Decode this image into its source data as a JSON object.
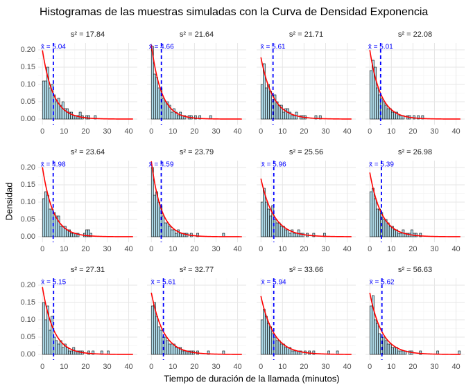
{
  "chart_data": {
    "type": "histogram",
    "title": "Histogramas de las muestras simuladas con la Curva de Densidad Exponencia",
    "xlabel": "Tiempo de duración de la llamada (minutos)",
    "ylabel": "Densidad",
    "xlim": [
      -2,
      44
    ],
    "xticks": [
      0,
      10,
      20,
      30,
      40
    ],
    "ylim": [
      -0.016,
      0.22
    ],
    "yticks": [
      {
        "value": 0,
        "label": "0.00"
      },
      {
        "value": 0.05,
        "label": "0.05"
      },
      {
        "value": 0.1,
        "label": "0.10"
      },
      {
        "value": 0.15,
        "label": "0.15"
      },
      {
        "value": 0.2,
        "label": "0.20"
      }
    ],
    "grid": true,
    "bar_color": "#add8e6",
    "curve_color": "#ff0000",
    "mean_color": "#0000ff",
    "bins": [
      0,
      1,
      2,
      3,
      4,
      5,
      6,
      7,
      8,
      9,
      10,
      11,
      12,
      13,
      14,
      15,
      16,
      17,
      18,
      19,
      20,
      21,
      22,
      23,
      24,
      25,
      26,
      27,
      28,
      29,
      30,
      31,
      32,
      33,
      34,
      35,
      36,
      37,
      38,
      39,
      40,
      41,
      42
    ],
    "panels": [
      {
        "label": "s² = 17.84",
        "mean_label": "x̄ = 5.04",
        "mean": 5.04,
        "values": [
          0.11,
          0.11,
          0.15,
          0.09,
          0.1,
          0.07,
          0.05,
          0.06,
          0.04,
          0.05,
          0.03,
          0.03,
          0.02,
          0.02,
          0.01,
          0.01,
          0.01,
          0.02,
          0.01,
          0,
          0.01,
          0.01,
          0,
          0,
          0.01,
          0,
          0,
          0,
          0,
          0,
          0,
          0,
          0,
          0,
          0,
          0,
          0,
          0,
          0,
          0,
          0,
          0
        ]
      },
      {
        "label": "s² = 21.64",
        "mean_label": "x̄ = 4.66",
        "mean": 4.66,
        "values": [
          0.21,
          0.13,
          0.12,
          0.09,
          0.09,
          0.06,
          0.05,
          0.05,
          0.04,
          0.02,
          0.03,
          0.02,
          0.01,
          0.02,
          0.01,
          0.01,
          0,
          0.01,
          0.01,
          0,
          0.01,
          0,
          0.01,
          0,
          0,
          0,
          0,
          0.01,
          0,
          0,
          0,
          0,
          0,
          0,
          0,
          0,
          0,
          0,
          0,
          0,
          0,
          0
        ]
      },
      {
        "label": "s² = 21.71",
        "mean_label": "x̄ = 5.61",
        "mean": 5.61,
        "values": [
          0.1,
          0.16,
          0.09,
          0.1,
          0.08,
          0.05,
          0.07,
          0.05,
          0.04,
          0.04,
          0.02,
          0.03,
          0.03,
          0.02,
          0.01,
          0.01,
          0.02,
          0,
          0.01,
          0.01,
          0.01,
          0,
          0,
          0,
          0,
          0.01,
          0,
          0.01,
          0,
          0,
          0,
          0,
          0,
          0,
          0,
          0,
          0,
          0,
          0,
          0,
          0,
          0
        ]
      },
      {
        "label": "s² = 22.08",
        "mean_label": "x̄ = 5.01",
        "mean": 5.01,
        "values": [
          0.14,
          0.17,
          0.15,
          0.09,
          0.07,
          0.06,
          0.05,
          0.04,
          0.03,
          0.03,
          0.02,
          0.02,
          0.02,
          0.01,
          0.01,
          0.01,
          0,
          0.01,
          0.01,
          0,
          0.01,
          0,
          0.01,
          0,
          0.01,
          0,
          0,
          0,
          0,
          0,
          0,
          0,
          0,
          0,
          0,
          0,
          0,
          0,
          0,
          0,
          0,
          0
        ]
      },
      {
        "label": "s² = 23.64",
        "mean_label": "x̄ = 4.98",
        "mean": 4.98,
        "values": [
          0.11,
          0.13,
          0.12,
          0.08,
          0.08,
          0.07,
          0.06,
          0.06,
          0.03,
          0.03,
          0.03,
          0.02,
          0.02,
          0.01,
          0.01,
          0.01,
          0.01,
          0,
          0,
          0.01,
          0.02,
          0.02,
          0.01,
          0,
          0,
          0,
          0,
          0,
          0,
          0,
          0,
          0,
          0,
          0,
          0,
          0,
          0,
          0,
          0,
          0,
          0,
          0
        ]
      },
      {
        "label": "s² = 23.79",
        "mean_label": "x̄ = 4.59",
        "mean": 4.59,
        "values": [
          0.2,
          0.12,
          0.13,
          0.1,
          0.09,
          0.06,
          0.04,
          0.04,
          0.03,
          0.02,
          0.02,
          0.01,
          0.02,
          0.01,
          0.01,
          0.01,
          0.01,
          0,
          0.01,
          0,
          0,
          0.01,
          0,
          0,
          0,
          0,
          0,
          0,
          0,
          0,
          0,
          0,
          0,
          0.01,
          0,
          0,
          0,
          0,
          0,
          0,
          0,
          0
        ]
      },
      {
        "label": "s² = 25.56",
        "mean_label": "x̄ = 5.96",
        "mean": 5.96,
        "values": [
          0.1,
          0.14,
          0.1,
          0.08,
          0.06,
          0.09,
          0.05,
          0.04,
          0.04,
          0.03,
          0.03,
          0.02,
          0.02,
          0.01,
          0.02,
          0.01,
          0.01,
          0.02,
          0.01,
          0.01,
          0,
          0.01,
          0,
          0,
          0.01,
          0,
          0,
          0,
          0,
          0.01,
          0,
          0,
          0,
          0,
          0,
          0,
          0,
          0,
          0,
          0,
          0,
          0
        ]
      },
      {
        "label": "s² = 26.98",
        "mean_label": "x̄ = 5.39",
        "mean": 5.39,
        "values": [
          0.13,
          0.14,
          0.11,
          0.08,
          0.08,
          0.07,
          0.05,
          0.05,
          0.04,
          0.03,
          0.03,
          0.02,
          0.02,
          0.01,
          0.01,
          0.02,
          0.01,
          0.01,
          0.01,
          0.02,
          0.01,
          0.01,
          0,
          0.01,
          0,
          0,
          0,
          0,
          0,
          0,
          0,
          0,
          0,
          0,
          0,
          0,
          0,
          0,
          0,
          0,
          0,
          0
        ]
      },
      {
        "label": "s² = 27.31",
        "mean_label": "x̄ = 5.15",
        "mean": 5.15,
        "values": [
          0.15,
          0.1,
          0.14,
          0.07,
          0.11,
          0.05,
          0.04,
          0.03,
          0.04,
          0.02,
          0.03,
          0.02,
          0.01,
          0.01,
          0.02,
          0.01,
          0.01,
          0.01,
          0.01,
          0,
          0,
          0.01,
          0,
          0.01,
          0,
          0,
          0,
          0.01,
          0,
          0,
          0.01,
          0,
          0,
          0,
          0,
          0,
          0,
          0,
          0,
          0,
          0,
          0
        ]
      },
      {
        "label": "s² = 32.77",
        "mean_label": "x̄ = 5.61",
        "mean": 5.61,
        "values": [
          0.14,
          0.15,
          0.11,
          0.08,
          0.07,
          0.05,
          0.05,
          0.04,
          0.03,
          0.03,
          0.03,
          0.02,
          0.02,
          0.02,
          0.01,
          0.01,
          0.01,
          0.01,
          0.01,
          0.01,
          0,
          0.01,
          0,
          0,
          0,
          0,
          0.01,
          0,
          0,
          0,
          0,
          0,
          0,
          0.01,
          0,
          0,
          0,
          0,
          0,
          0,
          0,
          0
        ]
      },
      {
        "label": "s² = 33.66",
        "mean_label": "x̄ = 5.94",
        "mean": 5.94,
        "values": [
          0.1,
          0.13,
          0.11,
          0.09,
          0.08,
          0.06,
          0.05,
          0.04,
          0.04,
          0.03,
          0.03,
          0.02,
          0.02,
          0.02,
          0.01,
          0.01,
          0.01,
          0.01,
          0.01,
          0,
          0.01,
          0,
          0.01,
          0,
          0.01,
          0,
          0,
          0,
          0,
          0,
          0,
          0.01,
          0,
          0,
          0,
          0.01,
          0,
          0,
          0,
          0,
          0,
          0
        ]
      },
      {
        "label": "s² = 56.63",
        "mean_label": "x̄ = 5.62",
        "mean": 5.62,
        "values": [
          0.14,
          0.17,
          0.1,
          0.09,
          0.06,
          0.05,
          0.05,
          0.04,
          0.03,
          0.03,
          0.02,
          0.02,
          0.02,
          0.01,
          0.01,
          0.01,
          0.01,
          0,
          0.01,
          0.01,
          0,
          0,
          0,
          0.01,
          0,
          0,
          0,
          0,
          0,
          0,
          0,
          0.01,
          0,
          0,
          0,
          0,
          0,
          0,
          0,
          0,
          0,
          0.01
        ]
      }
    ]
  }
}
